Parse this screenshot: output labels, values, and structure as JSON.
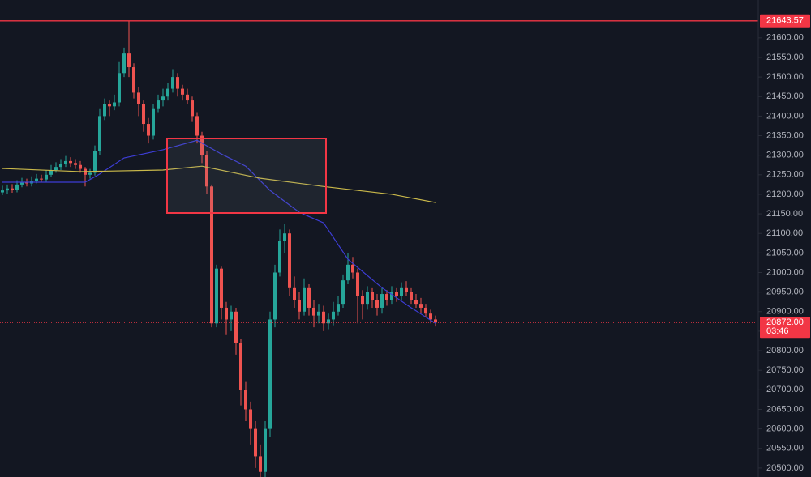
{
  "chart_data": {
    "type": "candlestick",
    "ylim": [
      20477,
      21697
    ],
    "yticks": [
      {
        "value": 20500,
        "label": "20500.00"
      },
      {
        "value": 20550,
        "label": "20550.00"
      },
      {
        "value": 20600,
        "label": "20600.00"
      },
      {
        "value": 20650,
        "label": "20650.00"
      },
      {
        "value": 20700,
        "label": "20700.00"
      },
      {
        "value": 20750,
        "label": "20750.00"
      },
      {
        "value": 20800,
        "label": "20800.00"
      },
      {
        "value": 20850,
        "label": "20850.00"
      },
      {
        "value": 20900,
        "label": "20900.00"
      },
      {
        "value": 20950,
        "label": "20950.00"
      },
      {
        "value": 21000,
        "label": "21000.00"
      },
      {
        "value": 21050,
        "label": "21050.00"
      },
      {
        "value": 21100,
        "label": "21100.00"
      },
      {
        "value": 21150,
        "label": "21150.00"
      },
      {
        "value": 21200,
        "label": "21200.00"
      },
      {
        "value": 21250,
        "label": "21250.00"
      },
      {
        "value": 21300,
        "label": "21300.00"
      },
      {
        "value": 21350,
        "label": "21350.00"
      },
      {
        "value": 21400,
        "label": "21400.00"
      },
      {
        "value": 21450,
        "label": "21450.00"
      },
      {
        "value": 21500,
        "label": "21500.00"
      },
      {
        "value": 21550,
        "label": "21550.00"
      },
      {
        "value": 21600,
        "label": "21600.00"
      }
    ],
    "grid": false,
    "up_color": "#26a69a",
    "down_color": "#ef5350",
    "open": [
      21205,
      21210,
      21215,
      21212,
      21225,
      21230,
      21228,
      21235,
      21240,
      21238,
      21250,
      21262,
      21270,
      21278,
      21285,
      21280,
      21275,
      21265,
      21250,
      21255,
      21310,
      21400,
      21430,
      21425,
      21435,
      21510,
      21560,
      21525,
      21460,
      21430,
      21380,
      21350,
      21420,
      21440,
      21450,
      21470,
      21500,
      21470,
      21455,
      21440,
      21400,
      21350,
      21300,
      21220,
      20870,
      21010,
      20910,
      20880,
      20900,
      20820,
      20700,
      20650,
      20600,
      20530,
      20490,
      20600,
      20880,
      21000,
      21080,
      21100,
      20960,
      20930,
      20900,
      20960,
      20910,
      20890,
      20900,
      20870,
      20880,
      20900,
      20920,
      20980,
      21020,
      21000,
      20940,
      20920,
      20950,
      20930,
      20910,
      20945,
      20930,
      20950,
      20940,
      20960,
      20950,
      20930,
      20920,
      20910,
      20895,
      20880
    ],
    "high": [
      21222,
      21225,
      21226,
      21236,
      21242,
      21240,
      21246,
      21252,
      21250,
      21262,
      21275,
      21282,
      21290,
      21298,
      21295,
      21290,
      21285,
      21270,
      21265,
      21325,
      21420,
      21445,
      21440,
      21455,
      21540,
      21575,
      21643.57,
      21535,
      21475,
      21440,
      21395,
      21430,
      21455,
      21470,
      21485,
      21520,
      21510,
      21480,
      21470,
      21450,
      21410,
      21360,
      21310,
      21225,
      21020,
      21015,
      20925,
      20915,
      20910,
      20830,
      20720,
      20670,
      20620,
      20560,
      20620,
      20900,
      21020,
      21110,
      21125,
      21110,
      20990,
      20950,
      20985,
      20970,
      20930,
      20920,
      20915,
      20895,
      20925,
      20940,
      20995,
      21050,
      21040,
      21010,
      20955,
      20965,
      20960,
      20945,
      20960,
      20955,
      20965,
      20960,
      20975,
      20978,
      20960,
      20945,
      20935,
      20920,
      20905,
      20890
    ],
    "low": [
      21198,
      21200,
      21204,
      21205,
      21218,
      21220,
      21220,
      21228,
      21230,
      21230,
      21245,
      21255,
      21262,
      21270,
      21270,
      21265,
      21255,
      21220,
      21240,
      21248,
      21300,
      21390,
      21400,
      21415,
      21425,
      21500,
      21500,
      21445,
      21400,
      21360,
      21330,
      21340,
      21410,
      21425,
      21440,
      21460,
      21450,
      21440,
      21430,
      21385,
      21330,
      21280,
      21200,
      20860,
      20860,
      20880,
      20840,
      20850,
      20790,
      20660,
      20620,
      20560,
      20500,
      20477,
      20477,
      20580,
      20860,
      20990,
      21050,
      20940,
      20910,
      20880,
      20890,
      20890,
      20860,
      20870,
      20850,
      20855,
      20865,
      20890,
      20910,
      20970,
      20985,
      20870,
      20880,
      20905,
      20910,
      20890,
      20895,
      20915,
      20920,
      20925,
      20930,
      20940,
      20920,
      20910,
      20895,
      20885,
      20870,
      20862
    ],
    "close": [
      21210,
      21215,
      21212,
      21225,
      21230,
      21228,
      21235,
      21240,
      21238,
      21250,
      21262,
      21270,
      21278,
      21285,
      21280,
      21275,
      21265,
      21250,
      21255,
      21310,
      21400,
      21430,
      21425,
      21435,
      21510,
      21560,
      21525,
      21460,
      21430,
      21380,
      21350,
      21420,
      21440,
      21450,
      21470,
      21500,
      21470,
      21455,
      21440,
      21400,
      21350,
      21300,
      21220,
      20870,
      21010,
      20910,
      20880,
      20900,
      20820,
      20700,
      20650,
      20600,
      20530,
      20490,
      20600,
      20880,
      21000,
      21080,
      21100,
      20960,
      20930,
      20900,
      20960,
      20910,
      20890,
      20900,
      20870,
      20880,
      20900,
      20920,
      20980,
      21020,
      21000,
      20940,
      20920,
      20950,
      20930,
      20910,
      20945,
      20930,
      20950,
      20940,
      20960,
      20950,
      20930,
      20920,
      20910,
      20895,
      20880,
      20872
    ],
    "moving_averages": [
      {
        "color": "#3d3dd6",
        "x": [
          0,
          17,
          20,
          25,
          33,
          40,
          45,
          50,
          55,
          61,
          66,
          71,
          78,
          84,
          89
        ],
        "values": [
          21231,
          21231,
          21252,
          21293,
          21314,
          21338,
          21303,
          21272,
          21210,
          21154,
          21127,
          21034,
          20961,
          20910,
          20870
        ]
      },
      {
        "color": "#c9b84a",
        "x": [
          0,
          16,
          33,
          41,
          53,
          66,
          80,
          89
        ],
        "values": [
          21266,
          21258,
          21262,
          21272,
          21241,
          21220,
          21200,
          21179
        ]
      }
    ],
    "levels": [
      {
        "value": 21643.57,
        "label": "21643.57",
        "color": "#f23645",
        "style": "solid"
      },
      {
        "value": 20872,
        "label": "20872.00",
        "countdown": "03:46",
        "color": "#f23645",
        "style": "dotted"
      }
    ]
  }
}
